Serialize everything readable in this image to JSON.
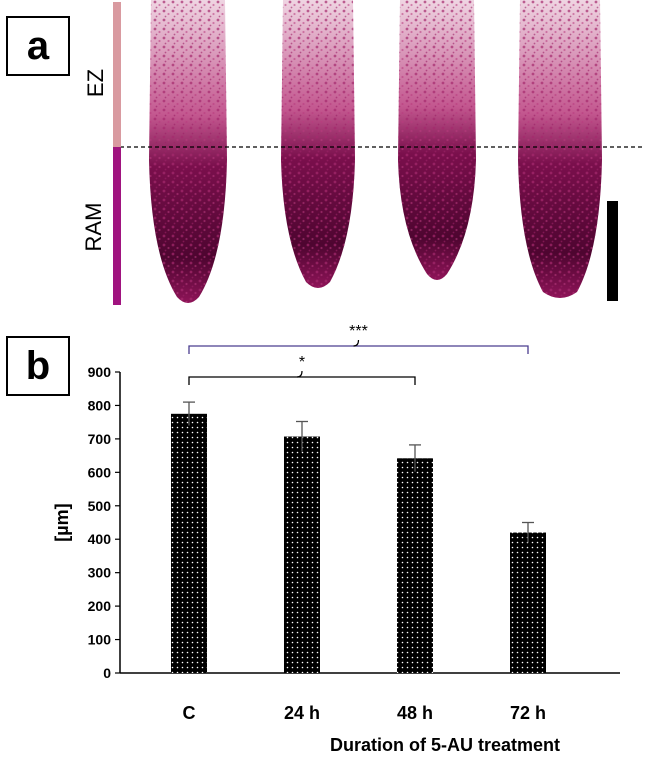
{
  "panels": {
    "a": "a",
    "b": "b"
  },
  "micrograph": {
    "zone_labels": {
      "ez": "EZ",
      "ram": "RAM"
    },
    "colors": {
      "ez_bar": "#d99aa0",
      "ram_bar": "#a0137f",
      "stain": "#8e1458"
    }
  },
  "chart_data": {
    "type": "bar",
    "categories": [
      "C",
      "24 h",
      "48 h",
      "72 h"
    ],
    "values": [
      775,
      707,
      642,
      420
    ],
    "errors": [
      35,
      45,
      40,
      30
    ],
    "xlabel": "Duration  of  5-AU treatment",
    "ylabel": "[µm]",
    "ylim": [
      0,
      900
    ],
    "yticks": [
      0,
      100,
      200,
      300,
      400,
      500,
      600,
      700,
      800,
      900
    ],
    "grid": false,
    "bar_color": "#000000",
    "significance": [
      {
        "from": 0,
        "to": 2,
        "label": "*"
      },
      {
        "from": 0,
        "to": 3,
        "label": "***"
      }
    ]
  }
}
